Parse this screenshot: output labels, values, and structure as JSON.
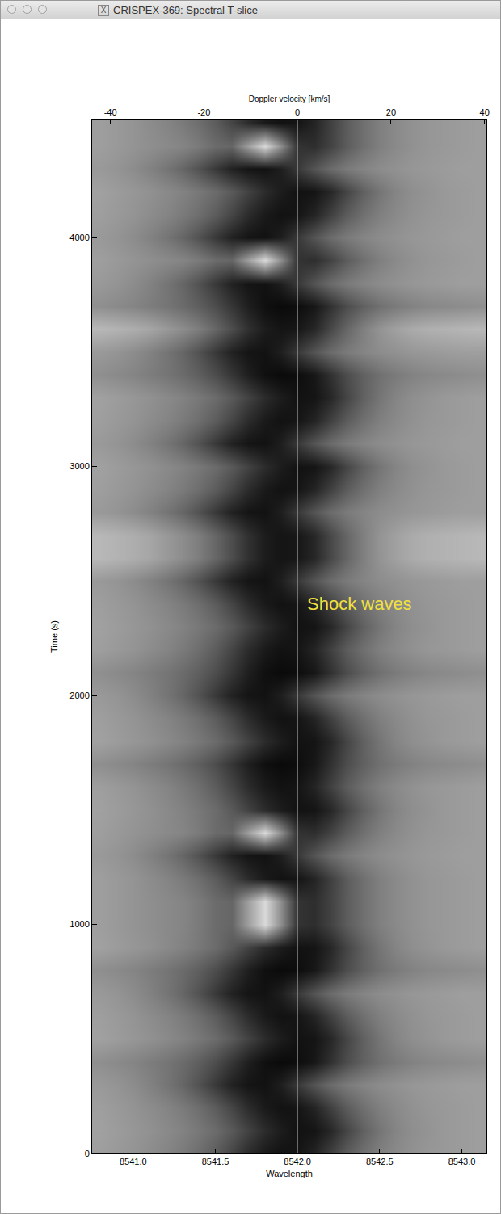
{
  "window_title": "CRISPEX-369: Spectral T-slice",
  "chart_data": {
    "type": "heatmap",
    "x_label": "Wavelength",
    "x2_label": "Doppler velocity [km/s]",
    "y_label": "Time (s)",
    "annotation": {
      "text": "Shock waves",
      "x": 8542.38,
      "y": 2400,
      "color": "#f0e040"
    },
    "vline": 8542.0,
    "xlim": [
      8540.75,
      8543.15
    ],
    "xticks": [
      {
        "value": 8541.0,
        "label": "8541.0"
      },
      {
        "value": 8541.5,
        "label": "8541.5"
      },
      {
        "value": 8542.0,
        "label": "8542.0"
      },
      {
        "value": 8542.5,
        "label": "8542.5"
      },
      {
        "value": 8543.0,
        "label": "8543.0"
      }
    ],
    "x2lim": [
      -43.9,
      40.4
    ],
    "x2ticks": [
      -40,
      -20,
      0,
      20,
      40
    ],
    "ylim": [
      0,
      4515
    ],
    "yticks": [
      0,
      1000,
      2000,
      3000,
      4000
    ],
    "zlim": [
      0,
      1
    ],
    "x": [
      8540.8,
      8540.9,
      8541.0,
      8541.1,
      8541.2,
      8541.3,
      8541.4,
      8541.5,
      8541.6,
      8541.7,
      8541.8,
      8541.9,
      8542.0,
      8542.1,
      8542.2,
      8542.3,
      8542.4,
      8542.5,
      8542.6,
      8542.7,
      8542.8,
      8542.9,
      8543.0,
      8543.1
    ],
    "y": [
      0,
      100,
      200,
      300,
      400,
      500,
      600,
      700,
      800,
      900,
      1000,
      1100,
      1200,
      1300,
      1400,
      1500,
      1600,
      1700,
      1800,
      1900,
      2000,
      2100,
      2200,
      2300,
      2400,
      2500,
      2600,
      2700,
      2800,
      2900,
      3000,
      3100,
      3200,
      3300,
      3400,
      3500,
      3600,
      3700,
      3800,
      3900,
      4000,
      4100,
      4200,
      4300,
      4400,
      4500
    ],
    "z": [
      [
        0.62,
        0.6,
        0.58,
        0.55,
        0.52,
        0.48,
        0.43,
        0.36,
        0.27,
        0.17,
        0.1,
        0.07,
        0.08,
        0.14,
        0.25,
        0.36,
        0.44,
        0.5,
        0.54,
        0.57,
        0.59,
        0.6,
        0.61,
        0.62
      ],
      [
        0.63,
        0.61,
        0.59,
        0.57,
        0.54,
        0.51,
        0.47,
        0.42,
        0.35,
        0.26,
        0.17,
        0.11,
        0.07,
        0.08,
        0.15,
        0.27,
        0.38,
        0.46,
        0.52,
        0.56,
        0.58,
        0.6,
        0.61,
        0.62
      ],
      [
        0.62,
        0.6,
        0.58,
        0.55,
        0.52,
        0.48,
        0.43,
        0.36,
        0.27,
        0.17,
        0.1,
        0.07,
        0.08,
        0.14,
        0.25,
        0.36,
        0.44,
        0.5,
        0.54,
        0.57,
        0.59,
        0.6,
        0.61,
        0.62
      ],
      [
        0.6,
        0.58,
        0.55,
        0.51,
        0.46,
        0.4,
        0.32,
        0.22,
        0.13,
        0.08,
        0.07,
        0.12,
        0.22,
        0.33,
        0.42,
        0.48,
        0.52,
        0.55,
        0.57,
        0.59,
        0.6,
        0.61,
        0.62,
        0.62
      ],
      [
        0.56,
        0.54,
        0.52,
        0.49,
        0.46,
        0.42,
        0.37,
        0.3,
        0.21,
        0.12,
        0.06,
        0.04,
        0.05,
        0.09,
        0.19,
        0.3,
        0.38,
        0.44,
        0.48,
        0.51,
        0.53,
        0.54,
        0.55,
        0.56
      ],
      [
        0.63,
        0.61,
        0.59,
        0.57,
        0.54,
        0.51,
        0.47,
        0.42,
        0.35,
        0.26,
        0.17,
        0.11,
        0.07,
        0.08,
        0.15,
        0.27,
        0.38,
        0.46,
        0.52,
        0.56,
        0.58,
        0.6,
        0.61,
        0.62
      ],
      [
        0.62,
        0.6,
        0.58,
        0.55,
        0.52,
        0.48,
        0.43,
        0.36,
        0.27,
        0.17,
        0.1,
        0.07,
        0.08,
        0.14,
        0.25,
        0.36,
        0.44,
        0.5,
        0.54,
        0.57,
        0.59,
        0.6,
        0.61,
        0.62
      ],
      [
        0.6,
        0.58,
        0.55,
        0.51,
        0.46,
        0.4,
        0.32,
        0.22,
        0.13,
        0.08,
        0.07,
        0.12,
        0.22,
        0.33,
        0.42,
        0.48,
        0.52,
        0.55,
        0.57,
        0.59,
        0.6,
        0.61,
        0.62,
        0.62
      ],
      [
        0.56,
        0.54,
        0.52,
        0.49,
        0.46,
        0.42,
        0.37,
        0.3,
        0.21,
        0.12,
        0.06,
        0.04,
        0.05,
        0.09,
        0.19,
        0.3,
        0.38,
        0.44,
        0.48,
        0.51,
        0.53,
        0.54,
        0.55,
        0.56
      ],
      [
        0.63,
        0.61,
        0.59,
        0.57,
        0.54,
        0.51,
        0.47,
        0.42,
        0.35,
        0.26,
        0.17,
        0.11,
        0.07,
        0.08,
        0.15,
        0.27,
        0.38,
        0.46,
        0.52,
        0.56,
        0.58,
        0.6,
        0.61,
        0.62
      ],
      [
        0.62,
        0.6,
        0.58,
        0.56,
        0.54,
        0.52,
        0.48,
        0.42,
        0.4,
        0.62,
        0.85,
        0.55,
        0.2,
        0.18,
        0.26,
        0.36,
        0.44,
        0.5,
        0.54,
        0.57,
        0.59,
        0.6,
        0.61,
        0.62
      ],
      [
        0.62,
        0.6,
        0.58,
        0.56,
        0.54,
        0.52,
        0.48,
        0.42,
        0.4,
        0.62,
        0.85,
        0.55,
        0.2,
        0.18,
        0.26,
        0.36,
        0.44,
        0.5,
        0.54,
        0.57,
        0.59,
        0.6,
        0.61,
        0.62
      ],
      [
        0.62,
        0.6,
        0.58,
        0.55,
        0.52,
        0.48,
        0.43,
        0.36,
        0.27,
        0.17,
        0.1,
        0.07,
        0.08,
        0.14,
        0.25,
        0.36,
        0.44,
        0.5,
        0.54,
        0.57,
        0.59,
        0.6,
        0.61,
        0.62
      ],
      [
        0.6,
        0.58,
        0.55,
        0.51,
        0.46,
        0.4,
        0.32,
        0.22,
        0.13,
        0.08,
        0.07,
        0.12,
        0.22,
        0.33,
        0.42,
        0.48,
        0.52,
        0.55,
        0.57,
        0.59,
        0.6,
        0.61,
        0.62,
        0.62
      ],
      [
        0.62,
        0.6,
        0.58,
        0.56,
        0.54,
        0.52,
        0.48,
        0.42,
        0.4,
        0.62,
        0.85,
        0.55,
        0.2,
        0.18,
        0.26,
        0.36,
        0.44,
        0.5,
        0.54,
        0.57,
        0.59,
        0.6,
        0.61,
        0.62
      ],
      [
        0.63,
        0.61,
        0.59,
        0.57,
        0.54,
        0.51,
        0.47,
        0.42,
        0.35,
        0.26,
        0.17,
        0.11,
        0.07,
        0.08,
        0.15,
        0.27,
        0.38,
        0.46,
        0.52,
        0.56,
        0.58,
        0.6,
        0.61,
        0.62
      ],
      [
        0.62,
        0.6,
        0.58,
        0.55,
        0.52,
        0.48,
        0.43,
        0.36,
        0.27,
        0.17,
        0.1,
        0.07,
        0.08,
        0.14,
        0.25,
        0.36,
        0.44,
        0.5,
        0.54,
        0.57,
        0.59,
        0.6,
        0.61,
        0.62
      ],
      [
        0.56,
        0.54,
        0.52,
        0.49,
        0.46,
        0.42,
        0.37,
        0.3,
        0.21,
        0.12,
        0.06,
        0.04,
        0.05,
        0.09,
        0.19,
        0.3,
        0.38,
        0.44,
        0.48,
        0.51,
        0.53,
        0.54,
        0.55,
        0.56
      ],
      [
        0.63,
        0.61,
        0.59,
        0.57,
        0.54,
        0.51,
        0.47,
        0.42,
        0.35,
        0.26,
        0.17,
        0.11,
        0.07,
        0.08,
        0.15,
        0.27,
        0.38,
        0.46,
        0.52,
        0.56,
        0.58,
        0.6,
        0.61,
        0.62
      ],
      [
        0.62,
        0.6,
        0.58,
        0.55,
        0.52,
        0.48,
        0.43,
        0.36,
        0.27,
        0.17,
        0.1,
        0.07,
        0.08,
        0.14,
        0.25,
        0.36,
        0.44,
        0.5,
        0.54,
        0.57,
        0.59,
        0.6,
        0.61,
        0.62
      ],
      [
        0.6,
        0.58,
        0.55,
        0.51,
        0.46,
        0.4,
        0.32,
        0.22,
        0.13,
        0.08,
        0.07,
        0.12,
        0.22,
        0.33,
        0.42,
        0.48,
        0.52,
        0.55,
        0.57,
        0.59,
        0.6,
        0.61,
        0.62,
        0.62
      ],
      [
        0.56,
        0.54,
        0.52,
        0.49,
        0.46,
        0.42,
        0.37,
        0.3,
        0.21,
        0.12,
        0.06,
        0.04,
        0.05,
        0.09,
        0.19,
        0.3,
        0.38,
        0.44,
        0.48,
        0.51,
        0.53,
        0.54,
        0.55,
        0.56
      ],
      [
        0.62,
        0.6,
        0.58,
        0.55,
        0.52,
        0.48,
        0.43,
        0.36,
        0.27,
        0.17,
        0.1,
        0.07,
        0.08,
        0.14,
        0.25,
        0.36,
        0.44,
        0.5,
        0.54,
        0.57,
        0.59,
        0.6,
        0.61,
        0.62
      ],
      [
        0.63,
        0.61,
        0.59,
        0.57,
        0.54,
        0.51,
        0.47,
        0.42,
        0.35,
        0.26,
        0.17,
        0.11,
        0.07,
        0.08,
        0.15,
        0.27,
        0.38,
        0.46,
        0.52,
        0.56,
        0.58,
        0.6,
        0.61,
        0.62
      ],
      [
        0.62,
        0.6,
        0.58,
        0.55,
        0.52,
        0.48,
        0.43,
        0.36,
        0.27,
        0.17,
        0.1,
        0.07,
        0.08,
        0.14,
        0.25,
        0.36,
        0.44,
        0.5,
        0.54,
        0.57,
        0.59,
        0.6,
        0.61,
        0.62
      ],
      [
        0.6,
        0.58,
        0.55,
        0.51,
        0.46,
        0.4,
        0.32,
        0.22,
        0.13,
        0.08,
        0.07,
        0.12,
        0.22,
        0.33,
        0.42,
        0.48,
        0.52,
        0.55,
        0.57,
        0.59,
        0.6,
        0.61,
        0.62,
        0.62
      ],
      [
        0.72,
        0.7,
        0.68,
        0.65,
        0.6,
        0.55,
        0.49,
        0.4,
        0.3,
        0.19,
        0.11,
        0.08,
        0.09,
        0.15,
        0.28,
        0.4,
        0.5,
        0.58,
        0.63,
        0.67,
        0.69,
        0.7,
        0.71,
        0.72
      ],
      [
        0.72,
        0.7,
        0.68,
        0.65,
        0.6,
        0.55,
        0.49,
        0.4,
        0.3,
        0.19,
        0.11,
        0.08,
        0.09,
        0.15,
        0.28,
        0.4,
        0.5,
        0.58,
        0.63,
        0.67,
        0.69,
        0.7,
        0.71,
        0.72
      ],
      [
        0.6,
        0.58,
        0.55,
        0.51,
        0.46,
        0.4,
        0.32,
        0.22,
        0.13,
        0.08,
        0.07,
        0.12,
        0.22,
        0.33,
        0.42,
        0.48,
        0.52,
        0.55,
        0.57,
        0.59,
        0.6,
        0.61,
        0.62,
        0.62
      ],
      [
        0.62,
        0.6,
        0.58,
        0.55,
        0.52,
        0.48,
        0.43,
        0.36,
        0.27,
        0.17,
        0.1,
        0.07,
        0.08,
        0.14,
        0.25,
        0.36,
        0.44,
        0.5,
        0.54,
        0.57,
        0.59,
        0.6,
        0.61,
        0.62
      ],
      [
        0.63,
        0.61,
        0.59,
        0.57,
        0.54,
        0.51,
        0.47,
        0.42,
        0.35,
        0.26,
        0.17,
        0.11,
        0.07,
        0.08,
        0.15,
        0.27,
        0.38,
        0.46,
        0.52,
        0.56,
        0.58,
        0.6,
        0.61,
        0.62
      ],
      [
        0.6,
        0.58,
        0.55,
        0.51,
        0.46,
        0.4,
        0.32,
        0.22,
        0.13,
        0.08,
        0.07,
        0.12,
        0.22,
        0.33,
        0.42,
        0.48,
        0.52,
        0.55,
        0.57,
        0.59,
        0.6,
        0.61,
        0.62,
        0.62
      ],
      [
        0.62,
        0.6,
        0.58,
        0.55,
        0.52,
        0.48,
        0.43,
        0.36,
        0.27,
        0.17,
        0.1,
        0.07,
        0.08,
        0.14,
        0.25,
        0.36,
        0.44,
        0.5,
        0.54,
        0.57,
        0.59,
        0.6,
        0.61,
        0.62
      ],
      [
        0.63,
        0.61,
        0.59,
        0.57,
        0.54,
        0.51,
        0.47,
        0.42,
        0.35,
        0.26,
        0.17,
        0.11,
        0.07,
        0.08,
        0.15,
        0.27,
        0.38,
        0.46,
        0.52,
        0.56,
        0.58,
        0.6,
        0.61,
        0.62
      ],
      [
        0.56,
        0.54,
        0.52,
        0.49,
        0.46,
        0.42,
        0.37,
        0.3,
        0.21,
        0.12,
        0.06,
        0.04,
        0.05,
        0.09,
        0.19,
        0.3,
        0.38,
        0.44,
        0.48,
        0.51,
        0.53,
        0.54,
        0.55,
        0.56
      ],
      [
        0.6,
        0.58,
        0.55,
        0.51,
        0.46,
        0.4,
        0.32,
        0.22,
        0.13,
        0.08,
        0.07,
        0.12,
        0.22,
        0.33,
        0.42,
        0.48,
        0.52,
        0.55,
        0.57,
        0.59,
        0.6,
        0.61,
        0.62,
        0.62
      ],
      [
        0.72,
        0.7,
        0.68,
        0.65,
        0.6,
        0.55,
        0.49,
        0.4,
        0.3,
        0.19,
        0.11,
        0.08,
        0.09,
        0.15,
        0.28,
        0.4,
        0.5,
        0.58,
        0.63,
        0.67,
        0.69,
        0.7,
        0.71,
        0.72
      ],
      [
        0.56,
        0.54,
        0.52,
        0.49,
        0.46,
        0.42,
        0.37,
        0.3,
        0.21,
        0.12,
        0.06,
        0.04,
        0.05,
        0.09,
        0.19,
        0.3,
        0.38,
        0.44,
        0.48,
        0.51,
        0.53,
        0.54,
        0.55,
        0.56
      ],
      [
        0.6,
        0.58,
        0.55,
        0.51,
        0.46,
        0.4,
        0.32,
        0.22,
        0.13,
        0.08,
        0.07,
        0.12,
        0.22,
        0.33,
        0.42,
        0.48,
        0.52,
        0.55,
        0.57,
        0.59,
        0.6,
        0.61,
        0.62,
        0.62
      ],
      [
        0.62,
        0.6,
        0.58,
        0.56,
        0.54,
        0.52,
        0.48,
        0.42,
        0.4,
        0.62,
        0.85,
        0.55,
        0.2,
        0.18,
        0.26,
        0.36,
        0.44,
        0.5,
        0.54,
        0.57,
        0.59,
        0.6,
        0.61,
        0.62
      ],
      [
        0.6,
        0.58,
        0.55,
        0.51,
        0.46,
        0.4,
        0.32,
        0.22,
        0.13,
        0.08,
        0.07,
        0.12,
        0.22,
        0.33,
        0.42,
        0.48,
        0.52,
        0.55,
        0.57,
        0.59,
        0.6,
        0.61,
        0.62,
        0.62
      ],
      [
        0.62,
        0.6,
        0.58,
        0.55,
        0.52,
        0.48,
        0.43,
        0.36,
        0.27,
        0.17,
        0.1,
        0.07,
        0.08,
        0.14,
        0.25,
        0.36,
        0.44,
        0.5,
        0.54,
        0.57,
        0.59,
        0.6,
        0.61,
        0.62
      ],
      [
        0.63,
        0.61,
        0.59,
        0.57,
        0.54,
        0.51,
        0.47,
        0.42,
        0.35,
        0.26,
        0.17,
        0.11,
        0.07,
        0.08,
        0.15,
        0.27,
        0.38,
        0.46,
        0.52,
        0.56,
        0.58,
        0.6,
        0.61,
        0.62
      ],
      [
        0.6,
        0.58,
        0.55,
        0.51,
        0.46,
        0.4,
        0.32,
        0.22,
        0.13,
        0.08,
        0.07,
        0.12,
        0.22,
        0.33,
        0.42,
        0.48,
        0.52,
        0.55,
        0.57,
        0.59,
        0.6,
        0.61,
        0.62,
        0.62
      ],
      [
        0.62,
        0.6,
        0.58,
        0.56,
        0.54,
        0.52,
        0.48,
        0.42,
        0.4,
        0.62,
        0.85,
        0.55,
        0.2,
        0.18,
        0.26,
        0.36,
        0.44,
        0.5,
        0.54,
        0.57,
        0.59,
        0.6,
        0.61,
        0.62
      ],
      [
        0.62,
        0.6,
        0.58,
        0.55,
        0.52,
        0.48,
        0.43,
        0.36,
        0.27,
        0.17,
        0.1,
        0.07,
        0.08,
        0.14,
        0.25,
        0.36,
        0.44,
        0.5,
        0.54,
        0.57,
        0.59,
        0.6,
        0.61,
        0.62
      ]
    ]
  }
}
